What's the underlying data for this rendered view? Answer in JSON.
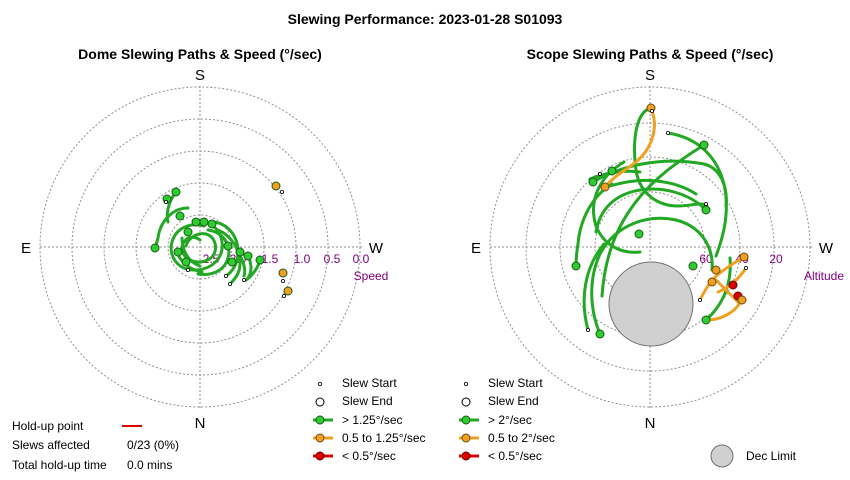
{
  "title": "Slewing Performance: 2023-01-28 S01093",
  "colors": {
    "fast": "#22a822",
    "medium": "#f0a020",
    "slow": "#dd0000",
    "grid": "#909090",
    "tick_label": "#800080",
    "dec_limit_fill": "#d0d0d0"
  },
  "panels": [
    {
      "title": "Dome Slewing Paths & Speed (°/sec)",
      "compass": {
        "top": "S",
        "bottom": "N",
        "left": "E",
        "right": "W"
      },
      "tick_labels": [
        "2.5",
        "2.0",
        "1.5",
        "1.0",
        "0.5",
        "0.0"
      ],
      "axis_name": "Speed",
      "legend": {
        "start": "Slew Start",
        "end": "Slew End",
        "fast": "> 1.25°/sec",
        "medium": "0.5 to 1.25°/sec",
        "slow": "< 0.5°/sec"
      }
    },
    {
      "title": "Scope Slewing Paths & Speed (°/sec)",
      "compass": {
        "top": "S",
        "bottom": "N",
        "left": "E",
        "right": "W"
      },
      "tick_labels": [
        "60",
        "40",
        "20"
      ],
      "axis_name": "Altitude",
      "legend": {
        "start": "Slew Start",
        "end": "Slew End",
        "fast": "> 2°/sec",
        "medium": "0.5 to 2°/sec",
        "slow": "< 0.5°/sec"
      },
      "dec_limit_label": "Dec Limit"
    }
  ],
  "info": {
    "holdup_label": "Hold-up point",
    "slews_affected_label": "Slews affected",
    "slews_affected_value": "0/23 (0%)",
    "total_holdup_label": "Total hold-up time",
    "total_holdup_value": "0.0 mins"
  },
  "chart_data": [
    {
      "type": "polar-path",
      "title": "Dome Slewing Paths & Speed (°/sec)",
      "radial_axis": "Speed",
      "radial_ticks": [
        2.5,
        2.0,
        1.5,
        1.0,
        0.5,
        0.0
      ],
      "categories": [
        "> 1.25°/sec",
        "0.5 to 1.25°/sec",
        "< 0.5°/sec"
      ],
      "slews_total": 23
    },
    {
      "type": "polar-path",
      "title": "Scope Slewing Paths & Speed (°/sec)",
      "radial_axis": "Altitude",
      "radial_ticks": [
        60,
        40,
        20
      ],
      "categories": [
        "> 2°/sec",
        "0.5 to 2°/sec",
        "< 0.5°/sec"
      ],
      "slews_total": 23
    }
  ]
}
